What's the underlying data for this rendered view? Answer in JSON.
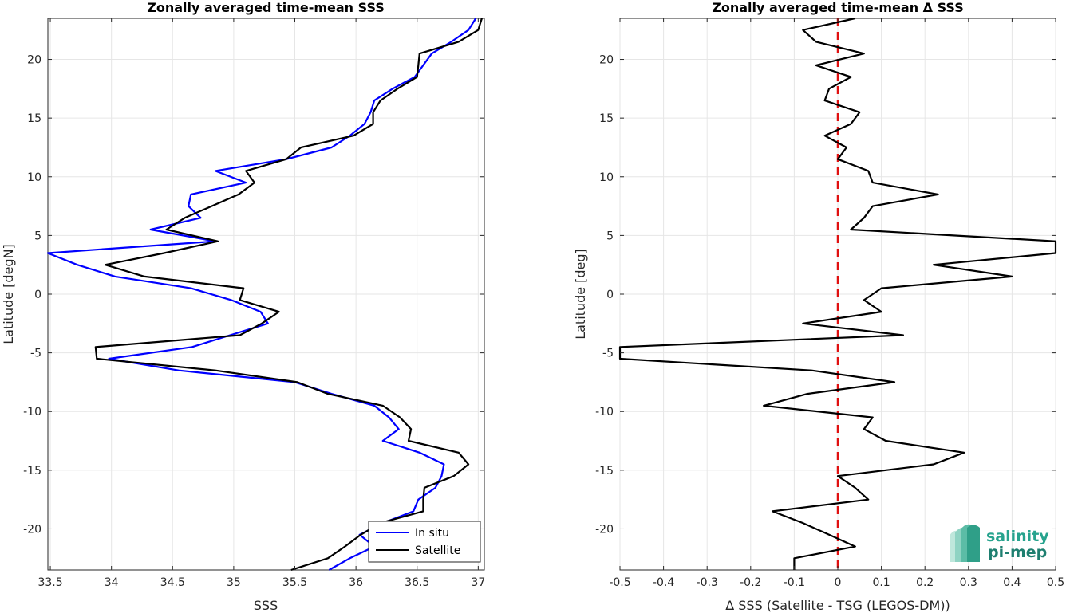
{
  "chart_data": [
    {
      "type": "line",
      "title": "Zonally averaged time-mean SSS",
      "xlabel": "SSS",
      "ylabel": "Latitude [degN]",
      "xlim": [
        33.48,
        37.05
      ],
      "ylim": [
        -23.5,
        23.5
      ],
      "xticks": [
        33.5,
        34,
        34.5,
        35,
        35.5,
        36,
        36.5,
        37
      ],
      "xticklabels": [
        "33.5",
        "34",
        "34.5",
        "35",
        "35.5",
        "36",
        "36.5",
        "37"
      ],
      "yticks": [
        -20,
        -15,
        -10,
        -5,
        0,
        5,
        10,
        15,
        20
      ],
      "yticklabels": [
        "-20",
        "-15",
        "-10",
        "-5",
        "0",
        "5",
        "10",
        "15",
        "20"
      ],
      "grid": true,
      "legend_position": "bottom-right",
      "series": [
        {
          "name": "In situ",
          "color": "#0000ff",
          "lat": [
            23.5,
            22.5,
            21.5,
            20.5,
            19.5,
            18.5,
            17.5,
            16.5,
            15.5,
            14.5,
            13.5,
            12.5,
            11.5,
            10.5,
            9.5,
            8.5,
            7.5,
            6.5,
            5.5,
            4.5,
            3.5,
            2.5,
            1.5,
            0.5,
            -0.5,
            -1.5,
            -2.5,
            -3.5,
            -4.5,
            -5.5,
            -6.5,
            -7.5,
            -8.5,
            -9.5,
            -10.5,
            -11.5,
            -12.5,
            -13.5,
            -14.5,
            -15.5,
            -16.5,
            -17.5,
            -18.5,
            -19.5,
            -20.5,
            -21.5,
            -22.5,
            -23.5
          ],
          "sss": [
            36.98,
            36.92,
            36.78,
            36.62,
            36.55,
            36.48,
            36.3,
            36.15,
            36.12,
            36.07,
            35.95,
            35.8,
            35.43,
            34.85,
            35.1,
            34.65,
            34.63,
            34.73,
            34.32,
            34.85,
            33.48,
            33.72,
            34.03,
            34.65,
            34.98,
            35.22,
            35.28,
            34.97,
            34.66,
            33.98,
            34.55,
            35.5,
            35.8,
            36.15,
            36.27,
            36.35,
            36.22,
            36.52,
            36.72,
            36.7,
            36.65,
            36.51,
            36.47,
            36.22,
            36.03,
            36.15,
            35.95,
            35.78
          ]
        },
        {
          "name": "Satellite",
          "color": "#000000",
          "lat": [
            23.5,
            22.5,
            21.5,
            20.5,
            19.5,
            18.5,
            17.5,
            16.5,
            15.5,
            14.5,
            13.5,
            12.5,
            11.5,
            10.5,
            9.5,
            8.5,
            7.5,
            6.5,
            5.5,
            4.5,
            3.5,
            2.5,
            1.5,
            0.5,
            -0.5,
            -1.5,
            -2.5,
            -3.5,
            -4.5,
            -5.5,
            -6.5,
            -7.5,
            -8.5,
            -9.5,
            -10.5,
            -11.5,
            -12.5,
            -13.5,
            -14.5,
            -15.5,
            -16.5,
            -17.5,
            -18.5,
            -19.5,
            -20.5,
            -21.5,
            -22.5,
            -23.5
          ],
          "sss": [
            37.03,
            37.0,
            36.84,
            36.52,
            36.51,
            36.5,
            36.34,
            36.2,
            36.14,
            36.14,
            35.98,
            35.55,
            35.43,
            35.1,
            35.17,
            35.04,
            34.82,
            34.6,
            34.45,
            34.87,
            34.43,
            33.95,
            34.27,
            35.08,
            35.05,
            35.37,
            35.23,
            35.05,
            33.87,
            33.88,
            34.85,
            35.52,
            35.77,
            36.22,
            36.36,
            36.45,
            36.43,
            36.84,
            36.92,
            36.8,
            36.56,
            36.55,
            36.55,
            36.2,
            36.04,
            35.91,
            35.77,
            35.47
          ]
        }
      ]
    },
    {
      "type": "line",
      "title": "Zonally averaged time-mean Δ SSS",
      "xlabel": "Δ SSS (Satellite - TSG (LEGOS-DM))",
      "ylabel": "Latitude [deg]",
      "xlim": [
        -0.5,
        0.5
      ],
      "ylim": [
        -23.5,
        23.5
      ],
      "xticks": [
        -0.5,
        -0.4,
        -0.3,
        -0.2,
        -0.1,
        0,
        0.1,
        0.2,
        0.3,
        0.4,
        0.5
      ],
      "xticklabels": [
        "-0.5",
        "-0.4",
        "-0.3",
        "-0.2",
        "-0.1",
        "0",
        "0.1",
        "0.2",
        "0.3",
        "0.4",
        "0.5"
      ],
      "yticks": [
        -20,
        -15,
        -10,
        -5,
        0,
        5,
        10,
        15,
        20
      ],
      "yticklabels": [
        "-20",
        "-15",
        "-10",
        "-5",
        "0",
        "5",
        "10",
        "15",
        "20"
      ],
      "grid": true,
      "reference_line": {
        "x": 0,
        "color": "#e01010",
        "style": "dashed"
      },
      "series": [
        {
          "name": "",
          "color": "#000000",
          "lat": [
            23.5,
            22.5,
            21.5,
            20.5,
            19.5,
            18.5,
            17.5,
            16.5,
            15.5,
            14.5,
            13.5,
            12.5,
            11.5,
            10.5,
            9.5,
            8.5,
            7.5,
            6.5,
            5.5,
            4.5,
            3.5,
            2.5,
            1.5,
            0.5,
            -0.5,
            -1.5,
            -2.5,
            -3.5,
            -4.5,
            -5.5,
            -6.5,
            -7.5,
            -8.5,
            -9.5,
            -10.5,
            -11.5,
            -12.5,
            -13.5,
            -14.5,
            -15.5,
            -16.5,
            -17.5,
            -18.5,
            -19.5,
            -20.5,
            -21.5,
            -22.5,
            -23.5
          ],
          "dsss": [
            0.04,
            -0.08,
            -0.05,
            0.06,
            -0.05,
            0.03,
            -0.02,
            -0.03,
            0.05,
            0.03,
            -0.03,
            0.02,
            0.0,
            0.07,
            0.08,
            0.23,
            0.08,
            0.06,
            0.03,
            0.5,
            0.5,
            0.22,
            0.4,
            0.1,
            0.06,
            0.1,
            -0.08,
            0.15,
            -0.5,
            -0.5,
            -0.06,
            0.13,
            -0.07,
            -0.17,
            0.08,
            0.06,
            0.11,
            0.29,
            0.22,
            0.0,
            0.04,
            0.07,
            -0.15,
            -0.08,
            -0.02,
            0.04,
            -0.1,
            -0.1
          ]
        }
      ]
    }
  ],
  "logo": {
    "line1": "salinity",
    "line2": "pi-mep"
  }
}
